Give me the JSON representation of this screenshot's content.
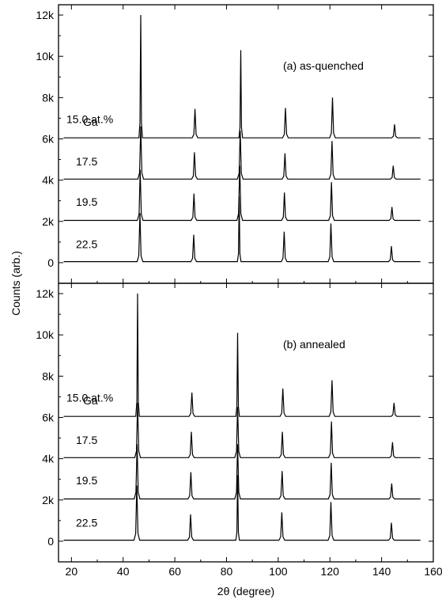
{
  "chart_data": [
    {
      "type": "line",
      "panel_label": "(a) as-quenched",
      "element_label": "Ga",
      "xlabel": "2θ (degree)",
      "ylabel": "Counts (arb.)",
      "xlim": [
        15,
        160
      ],
      "ylim": [
        -1000,
        12500
      ],
      "x_ticks": [
        20,
        40,
        60,
        80,
        100,
        120,
        140,
        160
      ],
      "y_ticks": [
        0,
        2000,
        4000,
        6000,
        8000,
        10000,
        12000
      ],
      "y_tick_labels": [
        "0",
        "2k",
        "4k",
        "6k",
        "8k",
        "10k",
        "12k"
      ],
      "x_range": [
        17,
        155
      ],
      "series": [
        {
          "name": "15.0 at.%",
          "label_y": 6950,
          "baseline": 6050,
          "peaks": [
            [
              46.8,
              12000
            ],
            [
              67.8,
              7450
            ],
            [
              85.5,
              10300
            ],
            [
              102.8,
              7500
            ],
            [
              121.0,
              8000
            ],
            [
              145.0,
              6700
            ]
          ]
        },
        {
          "name": "17.5",
          "label_y": 4900,
          "baseline": 4050,
          "peaks": [
            [
              46.8,
              6600
            ],
            [
              67.6,
              5350
            ],
            [
              85.3,
              6400
            ],
            [
              102.6,
              5300
            ],
            [
              120.8,
              5900
            ],
            [
              144.5,
              4700
            ]
          ]
        },
        {
          "name": "19.5",
          "label_y": 2950,
          "baseline": 2050,
          "peaks": [
            [
              46.6,
              4500
            ],
            [
              67.4,
              3350
            ],
            [
              85.1,
              4700
            ],
            [
              102.4,
              3400
            ],
            [
              120.6,
              3900
            ],
            [
              144.0,
              2700
            ]
          ]
        },
        {
          "name": "22.5",
          "label_y": 900,
          "baseline": 50,
          "peaks": [
            [
              46.5,
              2400
            ],
            [
              67.3,
              1350
            ],
            [
              84.9,
              3200
            ],
            [
              102.3,
              1500
            ],
            [
              120.4,
              1900
            ],
            [
              143.8,
              800
            ]
          ]
        }
      ]
    },
    {
      "type": "line",
      "panel_label": "(b) annealed",
      "element_label": "Ga",
      "xlabel": "2θ (degree)",
      "ylabel": "Counts (arb.)",
      "xlim": [
        15,
        160
      ],
      "ylim": [
        -1000,
        12500
      ],
      "x_ticks": [
        20,
        40,
        60,
        80,
        100,
        120,
        140,
        160
      ],
      "x_tick_labels": [
        "20",
        "40",
        "60",
        "80",
        "100",
        "120",
        "140",
        "160"
      ],
      "y_ticks": [
        0,
        2000,
        4000,
        6000,
        8000,
        10000,
        12000
      ],
      "y_tick_labels": [
        "0",
        "2k",
        "4k",
        "6k",
        "8k",
        "10k",
        "12k"
      ],
      "x_range": [
        17,
        155
      ],
      "series": [
        {
          "name": "15.0 at.%",
          "label_y": 6950,
          "baseline": 6050,
          "peaks": [
            [
              45.6,
              12000
            ],
            [
              66.6,
              7200
            ],
            [
              84.3,
              10100
            ],
            [
              101.8,
              7400
            ],
            [
              120.8,
              7800
            ],
            [
              144.8,
              6700
            ]
          ]
        },
        {
          "name": "17.5",
          "label_y": 4900,
          "baseline": 4050,
          "peaks": [
            [
              45.6,
              6700
            ],
            [
              66.4,
              5300
            ],
            [
              84.3,
              6500
            ],
            [
              101.6,
              5300
            ],
            [
              120.6,
              5800
            ],
            [
              144.2,
              4800
            ]
          ]
        },
        {
          "name": "19.5",
          "label_y": 2950,
          "baseline": 2050,
          "peaks": [
            [
              45.4,
              4700
            ],
            [
              66.2,
              3350
            ],
            [
              84.3,
              4700
            ],
            [
              101.5,
              3400
            ],
            [
              120.5,
              3800
            ],
            [
              143.9,
              2800
            ]
          ]
        },
        {
          "name": "22.5",
          "label_y": 900,
          "baseline": 50,
          "peaks": [
            [
              45.3,
              2700
            ],
            [
              66.1,
              1300
            ],
            [
              84.3,
              3200
            ],
            [
              101.4,
              1400
            ],
            [
              120.4,
              1900
            ],
            [
              143.8,
              900
            ]
          ]
        }
      ]
    }
  ]
}
